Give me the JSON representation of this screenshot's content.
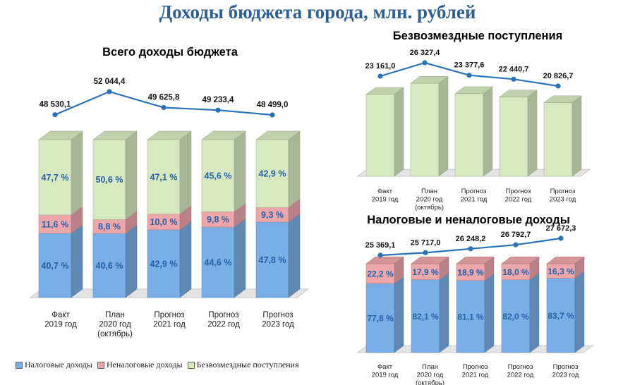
{
  "page_title": "Доходы бюджета города, млн. рублей",
  "colors": {
    "tax": "#7aaee6",
    "nontax": "#eda6aa",
    "free": "#d8e8c0",
    "line": "#2a72b8"
  },
  "legend": [
    {
      "label": "Налоговые доходы",
      "color": "#7aaee6"
    },
    {
      "label": "Неналоговые доходы",
      "color": "#eda6aa"
    },
    {
      "label": "Безвозмездные поступления",
      "color": "#d8e8c0"
    }
  ],
  "chart_data": [
    {
      "type": "bar",
      "stacked": true,
      "title": "Всего доходы бюджета",
      "categories": [
        [
          "Факт",
          "2019 год"
        ],
        [
          "План",
          "2020 год",
          "(октябрь)"
        ],
        [
          "Прогноз",
          "2021 год"
        ],
        [
          "Прогноз",
          "2022 год"
        ],
        [
          "Прогноз",
          "2023 год"
        ]
      ],
      "series": [
        {
          "name": "Налоговые доходы",
          "values": [
            40.7,
            40.6,
            42.9,
            44.6,
            47.8
          ],
          "labels": [
            "40,7 %",
            "40,6 %",
            "42,9 %",
            "44,6 %",
            "47,8 %"
          ]
        },
        {
          "name": "Неналоговые доходы",
          "values": [
            11.6,
            8.8,
            10.0,
            9.8,
            9.3
          ],
          "labels": [
            "11,6 %",
            "8,8 %",
            "10,0 %",
            "9,8 %",
            "9,3 %"
          ]
        },
        {
          "name": "Безвозмездные поступления",
          "values": [
            47.7,
            50.6,
            47.1,
            45.6,
            42.9
          ],
          "labels": [
            "47,7 %",
            "50,6 %",
            "47,1 %",
            "45,6 %",
            "42,9 %"
          ]
        }
      ],
      "line": {
        "values": [
          48530.1,
          52044.4,
          49625.8,
          49233.4,
          48499.0
        ],
        "labels": [
          "48 530,1",
          "52 044,4",
          "49 625,8",
          "49 233,4",
          "48 499,0"
        ]
      }
    },
    {
      "type": "bar",
      "stacked": false,
      "title": "Безвозмездные поступления",
      "categories": [
        [
          "Факт",
          "2019 год"
        ],
        [
          "План",
          "2020 год",
          "(октябрь)"
        ],
        [
          "Прогноз",
          "2021 год"
        ],
        [
          "Прогноз",
          "2022 год"
        ],
        [
          "Прогноз",
          "2023 год"
        ]
      ],
      "series": [
        {
          "name": "Безвозмездные поступления",
          "values": [
            23161.0,
            26327.4,
            23377.6,
            22440.7,
            20826.7
          ],
          "labels": []
        }
      ],
      "line": {
        "values": [
          23161.0,
          26327.4,
          23377.6,
          22440.7,
          20826.7
        ],
        "labels": [
          "23 161,0",
          "26 327,4",
          "23 377,6",
          "22 440,7",
          "20 826,7"
        ]
      }
    },
    {
      "type": "bar",
      "stacked": true,
      "title": "Налоговые и неналоговые доходы",
      "categories": [
        [
          "Факт",
          "2019 год"
        ],
        [
          "План",
          "2020 год",
          "(октябрь)"
        ],
        [
          "Прогноз",
          "2021 год"
        ],
        [
          "Прогноз",
          "2022 год"
        ],
        [
          "Прогноз",
          "2023 год"
        ]
      ],
      "series": [
        {
          "name": "Налоговые доходы",
          "values": [
            77.8,
            82.1,
            81.1,
            82.0,
            83.7
          ],
          "labels": [
            "77,8 %",
            "82,1 %",
            "81,1 %",
            "82,0 %",
            "83,7 %"
          ]
        },
        {
          "name": "Неналоговые доходы",
          "values": [
            22.2,
            17.9,
            18.9,
            18.0,
            16.3
          ],
          "labels": [
            "22,2 %",
            "17,9 %",
            "18,9 %",
            "18,0 %",
            "16,3 %"
          ]
        }
      ],
      "line": {
        "values": [
          25369.1,
          25717.0,
          26248.2,
          26792.7,
          27672.3
        ],
        "labels": [
          "25 369,1",
          "25 717,0",
          "26 248,2",
          "26 792,7",
          "27 672,3"
        ]
      }
    }
  ]
}
